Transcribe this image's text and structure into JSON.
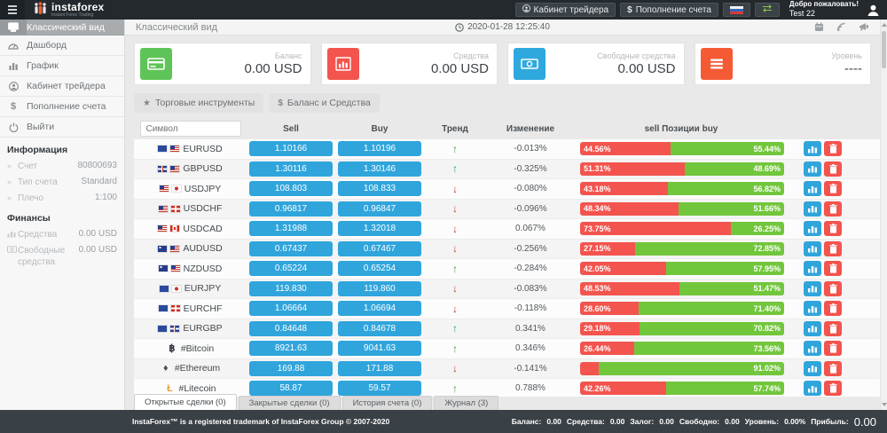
{
  "navbar": {
    "brand": "instaforex",
    "brand_sub": "Instant Forex Trading",
    "trader_cabinet": "Кабинет трейдера",
    "deposit": "Пополнение счета",
    "welcome": "Добро пожаловать!",
    "username": "Test 22"
  },
  "header": {
    "title": "Классический вид",
    "datetime": "2020-01-28 12:25:40"
  },
  "sidebar": {
    "menu": [
      {
        "label": "Классический вид",
        "icon": "classic-view",
        "active": true
      },
      {
        "label": "Дашборд",
        "icon": "dashboard",
        "active": false
      },
      {
        "label": "График",
        "icon": "chart",
        "active": false
      },
      {
        "label": "Кабинет трейдера",
        "icon": "user",
        "active": false
      },
      {
        "label": "Пополнение счета",
        "icon": "dollar",
        "active": false
      },
      {
        "label": "Выйти",
        "icon": "power",
        "active": false
      }
    ],
    "info_heading": "Информация",
    "info": [
      {
        "label": "Счет",
        "value": "80800693"
      },
      {
        "label": "Тип счета",
        "value": "Standard"
      },
      {
        "label": "Плечо",
        "value": "1:100"
      }
    ],
    "finance_heading": "Финансы",
    "finance": [
      {
        "label": "Средства",
        "value": "0.00 USD"
      },
      {
        "label": "Свободные средства",
        "value": "0.00 USD"
      }
    ]
  },
  "cards": [
    {
      "label": "Баланс",
      "value": "0.00 USD",
      "color": "#5fc457",
      "icon": "credit-card"
    },
    {
      "label": "Средства",
      "value": "0.00 USD",
      "color": "#f3544e",
      "icon": "bar-chart"
    },
    {
      "label": "Свободные средства",
      "value": "0.00 USD",
      "color": "#2fa8dd",
      "icon": "banknote"
    },
    {
      "label": "Уровень",
      "value": "----",
      "color": "#f45b35",
      "icon": "list"
    }
  ],
  "toolbar": {
    "instruments": "Торговые инструменты",
    "balance_funds": "Баланс и Средства"
  },
  "table": {
    "symbol_placeholder": "Символ",
    "headers": {
      "sell": "Sell",
      "buy": "Buy",
      "trend": "Тренд",
      "change": "Изменение",
      "positions": "sell Позиции buy"
    },
    "rows": [
      {
        "symbol": "EURUSD",
        "flags": [
          "eu",
          "us"
        ],
        "sell": "1.10166",
        "buy": "1.10196",
        "trend": "up",
        "change": "-0.013%",
        "sell_pct": 44.56,
        "sell_label": "44.56%",
        "buy_label": "55.44%"
      },
      {
        "symbol": "GBPUSD",
        "flags": [
          "gb",
          "us"
        ],
        "sell": "1.30116",
        "buy": "1.30146",
        "trend": "up",
        "change": "-0.325%",
        "sell_pct": 51.31,
        "sell_label": "51.31%",
        "buy_label": "48.69%"
      },
      {
        "symbol": "USDJPY",
        "flags": [
          "us",
          "jp"
        ],
        "sell": "108.803",
        "buy": "108.833",
        "trend": "down",
        "change": "-0.080%",
        "sell_pct": 43.18,
        "sell_label": "43.18%",
        "buy_label": "56.82%"
      },
      {
        "symbol": "USDCHF",
        "flags": [
          "us",
          "ch"
        ],
        "sell": "0.96817",
        "buy": "0.96847",
        "trend": "down",
        "change": "-0.096%",
        "sell_pct": 48.34,
        "sell_label": "48.34%",
        "buy_label": "51.66%"
      },
      {
        "symbol": "USDCAD",
        "flags": [
          "us",
          "ca"
        ],
        "sell": "1.31988",
        "buy": "1.32018",
        "trend": "down",
        "change": "0.067%",
        "sell_pct": 73.75,
        "sell_label": "73.75%",
        "buy_label": "26.25%"
      },
      {
        "symbol": "AUDUSD",
        "flags": [
          "au",
          "us"
        ],
        "sell": "0.67437",
        "buy": "0.67467",
        "trend": "down",
        "change": "-0.256%",
        "sell_pct": 27.15,
        "sell_label": "27.15%",
        "buy_label": "72.85%"
      },
      {
        "symbol": "NZDUSD",
        "flags": [
          "nz",
          "us"
        ],
        "sell": "0.65224",
        "buy": "0.65254",
        "trend": "up",
        "change": "-0.284%",
        "sell_pct": 42.05,
        "sell_label": "42.05%",
        "buy_label": "57.95%"
      },
      {
        "symbol": "EURJPY",
        "flags": [
          "eu",
          "jp"
        ],
        "sell": "119.830",
        "buy": "119.860",
        "trend": "down",
        "change": "-0.083%",
        "sell_pct": 48.53,
        "sell_label": "48.53%",
        "buy_label": "51.47%"
      },
      {
        "symbol": "EURCHF",
        "flags": [
          "eu",
          "ch"
        ],
        "sell": "1.06664",
        "buy": "1.06694",
        "trend": "down",
        "change": "-0.118%",
        "sell_pct": 28.6,
        "sell_label": "28.60%",
        "buy_label": "71.40%"
      },
      {
        "symbol": "EURGBP",
        "flags": [
          "eu",
          "gb"
        ],
        "sell": "0.84648",
        "buy": "0.84678",
        "trend": "up",
        "change": "0.341%",
        "sell_pct": 29.18,
        "sell_label": "29.18%",
        "buy_label": "70.82%"
      },
      {
        "symbol": "#Bitcoin",
        "crypto_icon": "฿",
        "crypto_color": "#23292f",
        "sell": "8921.63",
        "buy": "9041.63",
        "trend": "up",
        "change": "0.346%",
        "sell_pct": 26.44,
        "sell_label": "26.44%",
        "buy_label": "73.56%"
      },
      {
        "symbol": "#Ethereum",
        "crypto_icon": "♦",
        "crypto_color": "#4c5258",
        "sell": "169.88",
        "buy": "171.88",
        "trend": "down",
        "change": "-0.141%",
        "sell_pct": 8.98,
        "sell_label": "",
        "buy_label": "91.02%"
      },
      {
        "symbol": "#Litecoin",
        "crypto_icon": "Ł",
        "crypto_color": "#e8a33d",
        "sell": "58.87",
        "buy": "59.57",
        "trend": "up",
        "change": "0.788%",
        "sell_pct": 42.26,
        "sell_label": "42.26%",
        "buy_label": "57.74%"
      },
      {
        "symbol": "",
        "crypto_icon": "•",
        "crypto_color": "#2fa8dd",
        "sell": "",
        "buy": "",
        "trend": "down",
        "change": "",
        "sell_pct": 3,
        "sell_label": "",
        "buy_label": ""
      }
    ]
  },
  "tabs": [
    {
      "label": "Открытые сделки (0)",
      "active": true
    },
    {
      "label": "Закрытые сделки (0)",
      "active": false
    },
    {
      "label": "История счета (0)",
      "active": false
    },
    {
      "label": "Журнал (3)",
      "active": false
    }
  ],
  "footer": {
    "copyright": "InstaForex™ is a registered trademark of InstaForex Group © 2007-2020",
    "stats": [
      {
        "label": "Баланс:",
        "value": "0.00"
      },
      {
        "label": "Средства:",
        "value": "0.00"
      },
      {
        "label": "Залог:",
        "value": "0.00"
      },
      {
        "label": "Свободно:",
        "value": "0.00"
      },
      {
        "label": "Уровень:",
        "value": "0.00%"
      },
      {
        "label": "Прибыль:",
        "value": "0.00"
      }
    ]
  },
  "icons": {
    "star": "★",
    "dollar": "$",
    "trend_up": "↑",
    "trend_down": "↓",
    "info_marker": "»"
  },
  "colors": {
    "accent_blue": "#30a5dc",
    "sell_red": "#f3544e",
    "buy_green": "#72c63c",
    "navbar": "#24292d"
  }
}
